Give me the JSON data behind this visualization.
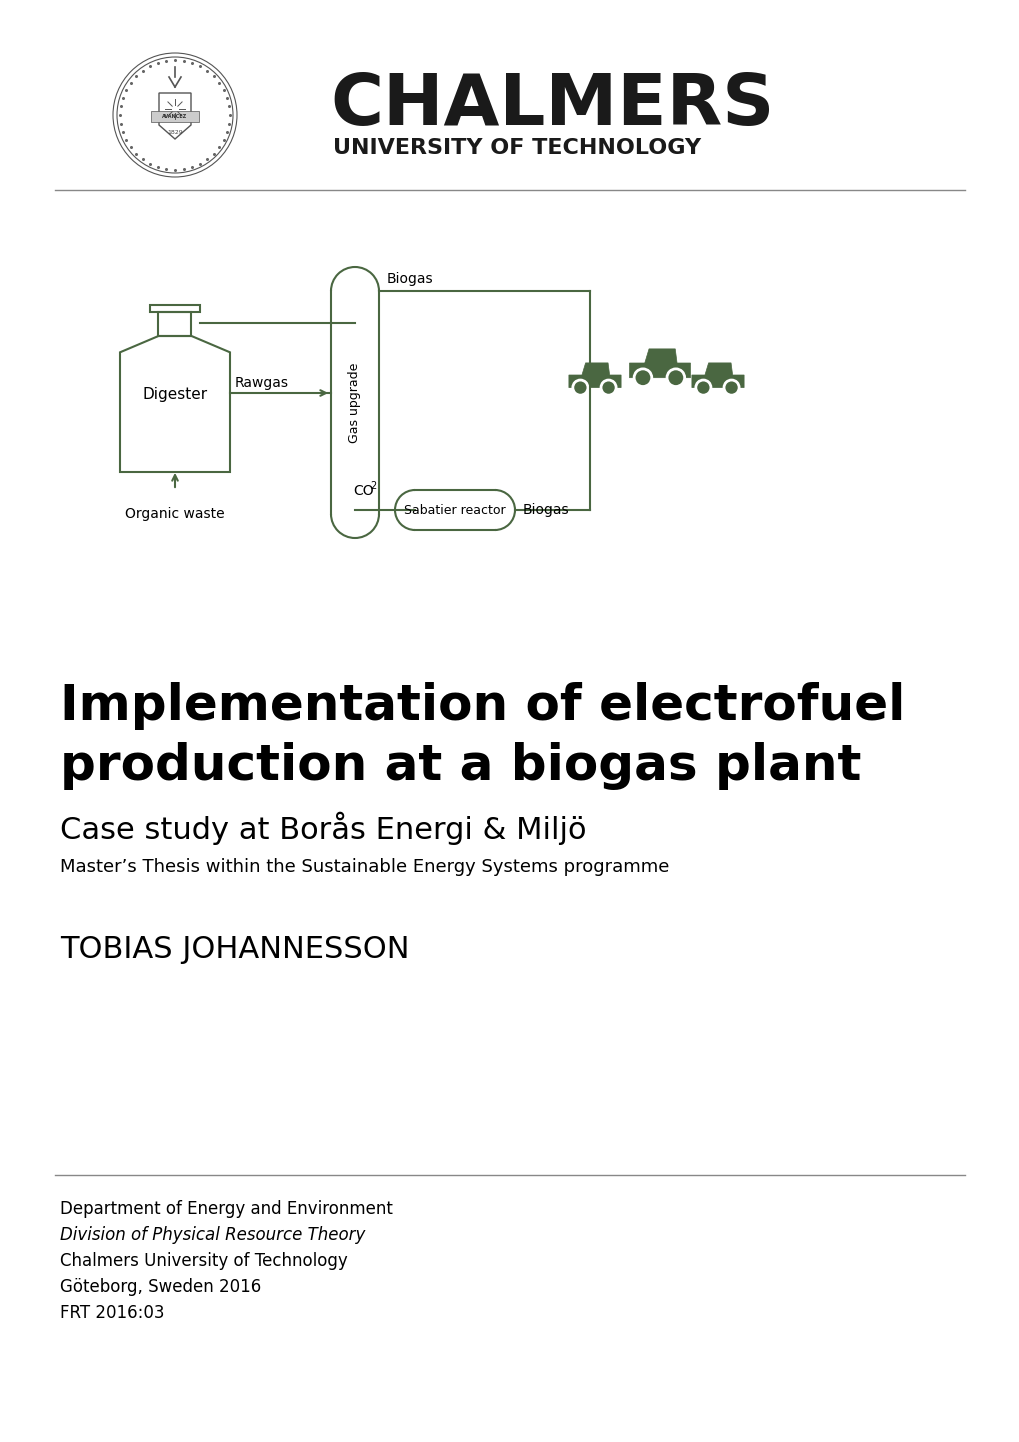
{
  "bg_color": "#ffffff",
  "title_line1": "Implementation of electrofuel",
  "title_line2": "production at a biogas plant",
  "subtitle": "Case study at Borås Energi & Miljö",
  "thesis_line": "Master’s Thesis within the Sustainable Energy Systems programme",
  "author": "TOBIAS JOHANNESSON",
  "dept_line1": "Department of Energy and Environment",
  "dept_line2": "Division of Physical Resource Theory",
  "dept_line3": "Chalmers University of Technology",
  "dept_line4": "Göteborg, Sweden 2016",
  "dept_line5": "FRT 2016:03",
  "chalmers_text": "CHALMERS",
  "univ_text": "UNIVERSITY OF TECHNOLOGY",
  "diagram_color": "#4a6741",
  "text_color": "#000000",
  "title_color": "#000000"
}
